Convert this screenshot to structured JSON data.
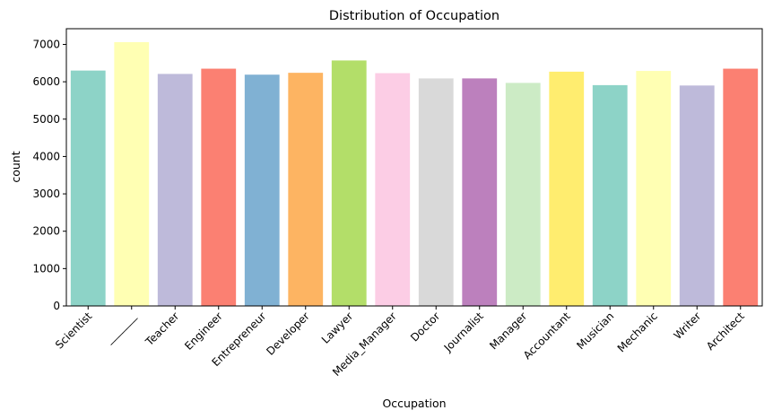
{
  "chart_data": {
    "type": "bar",
    "title": "Distribution of Occupation",
    "xlabel": "Occupation",
    "ylabel": "count",
    "categories": [
      "Scientist",
      "_______",
      "Teacher",
      "Engineer",
      "Entrepreneur",
      "Developer",
      "Lawyer",
      "Media_Manager",
      "Doctor",
      "Journalist",
      "Manager",
      "Accountant",
      "Musician",
      "Mechanic",
      "Writer",
      "Architect"
    ],
    "values": [
      6300,
      7060,
      6210,
      6350,
      6190,
      6240,
      6570,
      6230,
      6090,
      6090,
      5970,
      6270,
      5910,
      6290,
      5900,
      6350
    ],
    "colors": [
      "#8dd3c7",
      "#ffffb3",
      "#bebada",
      "#fb8072",
      "#80b1d3",
      "#fdb462",
      "#b3de69",
      "#fccde5",
      "#d9d9d9",
      "#bc80bd",
      "#ccebc5",
      "#ffed6f",
      "#8dd3c7",
      "#ffffb3",
      "#bebada",
      "#fb8072"
    ],
    "yticks": [
      0,
      1000,
      2000,
      3000,
      4000,
      5000,
      6000,
      7000
    ],
    "ylim": [
      0,
      7420
    ],
    "grid": false,
    "legend": "none"
  }
}
